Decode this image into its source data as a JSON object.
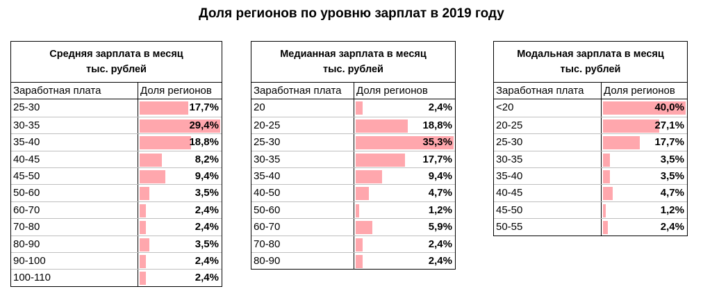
{
  "page_title": "Доля регионов по уровню зарплат в 2019 году",
  "bar_color": "#ffa7ad",
  "tables": [
    {
      "title_line1": "Средняя зарплата в месяц",
      "title_line2": "тыс. рублей",
      "col1": "Заработная плата",
      "col2": "Доля регионов",
      "rows": [
        {
          "label": "25-30",
          "value": 17.7,
          "text": "17,7%"
        },
        {
          "label": "30-35",
          "value": 29.4,
          "text": "29,4%"
        },
        {
          "label": "35-40",
          "value": 18.8,
          "text": "18,8%"
        },
        {
          "label": "40-45",
          "value": 8.2,
          "text": "8,2%"
        },
        {
          "label": "45-50",
          "value": 9.4,
          "text": "9,4%"
        },
        {
          "label": "50-60",
          "value": 3.5,
          "text": "3,5%"
        },
        {
          "label": "60-70",
          "value": 2.4,
          "text": "2,4%"
        },
        {
          "label": "70-80",
          "value": 2.4,
          "text": "2,4%"
        },
        {
          "label": "80-90",
          "value": 3.5,
          "text": "3,5%"
        },
        {
          "label": "90-100",
          "value": 2.4,
          "text": "2,4%"
        },
        {
          "label": "100-110",
          "value": 2.4,
          "text": "2,4%"
        }
      ]
    },
    {
      "title_line1": "Медианная зарплата в месяц",
      "title_line2": "тыс. рублей",
      "col1": "Заработная плата",
      "col2": "Доля регионов",
      "rows": [
        {
          "label": "20",
          "value": 2.4,
          "text": "2,4%"
        },
        {
          "label": "20-25",
          "value": 18.8,
          "text": "18,8%"
        },
        {
          "label": "25-30",
          "value": 35.3,
          "text": "35,3%"
        },
        {
          "label": "30-35",
          "value": 17.7,
          "text": "17,7%"
        },
        {
          "label": "35-40",
          "value": 9.4,
          "text": "9,4%"
        },
        {
          "label": "40-50",
          "value": 4.7,
          "text": "4,7%"
        },
        {
          "label": "50-60",
          "value": 1.2,
          "text": "1,2%"
        },
        {
          "label": "60-70",
          "value": 5.9,
          "text": "5,9%"
        },
        {
          "label": "70-80",
          "value": 2.4,
          "text": "2,4%"
        },
        {
          "label": "80-90",
          "value": 2.4,
          "text": "2,4%"
        }
      ]
    },
    {
      "title_line1": "Модальная зарплата в месяц",
      "title_line2": "тыс. рублей",
      "col1": "Заработная плата",
      "col2": "Доля регионов",
      "rows": [
        {
          "label": "<20",
          "value": 40.0,
          "text": "40,0%"
        },
        {
          "label": "20-25",
          "value": 27.1,
          "text": "27,1%"
        },
        {
          "label": "25-30",
          "value": 17.7,
          "text": "17,7%"
        },
        {
          "label": "30-35",
          "value": 3.5,
          "text": "3,5%"
        },
        {
          "label": "35-40",
          "value": 3.5,
          "text": "3,5%"
        },
        {
          "label": "40-45",
          "value": 4.7,
          "text": "4,7%"
        },
        {
          "label": "45-50",
          "value": 1.2,
          "text": "1,2%"
        },
        {
          "label": "50-55",
          "value": 2.4,
          "text": "2,4%"
        }
      ]
    }
  ]
}
